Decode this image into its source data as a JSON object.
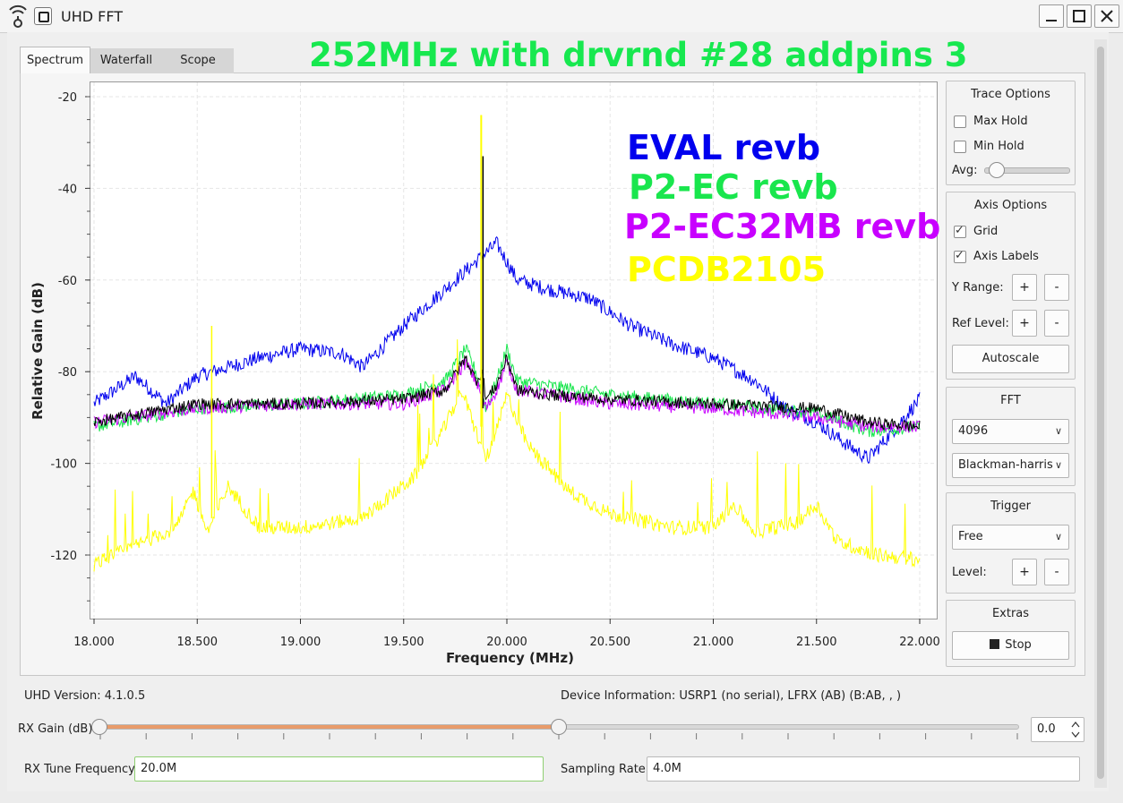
{
  "window": {
    "title": "UHD FFT"
  },
  "tabs": [
    {
      "label": "Spectrum",
      "active": true
    },
    {
      "label": "Waterfall",
      "active": false
    },
    {
      "label": "Scope",
      "active": false
    }
  ],
  "overlay_title": "252MHz with drvrnd #28 addpins 3",
  "legend": [
    {
      "label": "EVAL revb",
      "color": "#0000ee"
    },
    {
      "label": "P2-EC revb",
      "color": "#19e64d"
    },
    {
      "label": "P2-EC32MB revb",
      "color": "#c800ff"
    },
    {
      "label": "PCDB2105",
      "color": "#ffff00"
    }
  ],
  "chart_data": {
    "type": "line",
    "xlabel": "Frequency (MHz)",
    "ylabel": "Relative Gain (dB)",
    "xlim": [
      18.0,
      22.0
    ],
    "ylim": [
      -130,
      -20
    ],
    "y_ticks": [
      -20,
      -40,
      -60,
      -80,
      -100,
      -120
    ],
    "x_tick_labels": [
      "18.000",
      "18.500",
      "19.000",
      "19.500",
      "20.000",
      "20.500",
      "21.000",
      "21.500",
      "22.000"
    ],
    "grid": true,
    "series": [
      {
        "name": "EVAL revb",
        "color": "#0000ee",
        "x": [
          18.0,
          18.2,
          18.35,
          18.5,
          18.8,
          19.0,
          19.2,
          19.3,
          19.5,
          19.7,
          19.85,
          19.95,
          20.05,
          20.2,
          20.4,
          20.6,
          20.8,
          21.0,
          21.2,
          21.35,
          21.5,
          21.65,
          21.75,
          21.85,
          22.0
        ],
        "y": [
          -87,
          -81,
          -87,
          -81,
          -77,
          -75,
          -76,
          -79,
          -70,
          -62,
          -56,
          -52,
          -60,
          -62,
          -64,
          -70,
          -74,
          -77,
          -82,
          -88,
          -91,
          -96,
          -99,
          -94,
          -86
        ]
      },
      {
        "name": "P2-EC revb",
        "color": "#19e64d",
        "x": [
          18.0,
          18.5,
          19.0,
          19.5,
          19.7,
          19.8,
          19.85,
          19.9,
          19.95,
          20.0,
          20.05,
          20.2,
          20.5,
          21.0,
          21.5,
          21.75,
          22.0
        ],
        "y": [
          -92,
          -88,
          -87,
          -85,
          -82,
          -75,
          -80,
          -88,
          -82,
          -75,
          -82,
          -83,
          -85,
          -87,
          -89,
          -93,
          -92
        ]
      },
      {
        "name": "P2-EC32MB revb",
        "color": "#c800ff",
        "x": [
          18.0,
          18.5,
          19.0,
          19.5,
          19.7,
          19.8,
          19.85,
          19.9,
          19.95,
          20.0,
          20.05,
          20.2,
          20.5,
          21.0,
          21.5,
          21.75,
          22.0
        ],
        "y": [
          -91,
          -88,
          -87,
          -87,
          -84,
          -78,
          -82,
          -88,
          -84,
          -78,
          -84,
          -85,
          -87,
          -88,
          -90,
          -92,
          -92
        ]
      },
      {
        "name": "PCDB2105",
        "color": "#ffff00",
        "x": [
          18.0,
          18.2,
          18.4,
          18.48,
          18.55,
          18.65,
          18.8,
          19.0,
          19.3,
          19.55,
          19.7,
          19.78,
          19.85,
          19.9,
          19.95,
          20.0,
          20.1,
          20.3,
          20.5,
          20.8,
          21.0,
          21.1,
          21.2,
          21.4,
          21.5,
          21.6,
          21.8,
          22.0
        ],
        "y": [
          -122,
          -118,
          -114,
          -106,
          -115,
          -105,
          -114,
          -114,
          -112,
          -103,
          -92,
          -84,
          -93,
          -99,
          -93,
          -85,
          -96,
          -106,
          -111,
          -114,
          -114,
          -109,
          -115,
          -113,
          -109,
          -117,
          -120,
          -121
        ]
      },
      {
        "name": "",
        "color": "#000000",
        "x": [
          18.0,
          18.5,
          19.0,
          19.5,
          19.7,
          19.8,
          19.85,
          19.88,
          19.9,
          19.95,
          20.0,
          20.05,
          20.2,
          20.5,
          21.0,
          21.5,
          21.75,
          22.0
        ],
        "y": [
          -91,
          -87,
          -87,
          -86,
          -84,
          -77,
          -82,
          -80,
          -86,
          -83,
          -77,
          -84,
          -85,
          -86,
          -87,
          -88,
          -91,
          -92
        ]
      }
    ],
    "spike": {
      "x": 19.88,
      "y_top": -24
    }
  },
  "trace_options": {
    "title": "Trace Options",
    "max_hold": "Max Hold",
    "min_hold": "Min Hold",
    "avg_label": "Avg:",
    "avg_value": 0.05
  },
  "axis_options": {
    "title": "Axis Options",
    "grid": "Grid",
    "axis_labels": "Axis Labels",
    "y_range": "Y Range:",
    "ref_level": "Ref Level:",
    "plus": "+",
    "minus": "-",
    "autoscale": "Autoscale"
  },
  "fft": {
    "title": "FFT",
    "size": "4096",
    "window": "Blackman-harris"
  },
  "trigger": {
    "title": "Trigger",
    "mode": "Free",
    "level": "Level:"
  },
  "extras": {
    "title": "Extras",
    "stop": "Stop"
  },
  "status": {
    "uhd_version": "UHD Version: 4.1.0.5",
    "device_info": "Device Information: USRP1 (no serial), LFRX (AB) (B:AB, , )"
  },
  "rx_gain": {
    "label": "RX Gain (dB)",
    "value": "0.0",
    "fraction": 0.5
  },
  "rx_tune": {
    "label": "RX Tune Frequency:",
    "value": "20.0M"
  },
  "sampling": {
    "label": "Sampling Rate:",
    "value": "4.0M"
  }
}
